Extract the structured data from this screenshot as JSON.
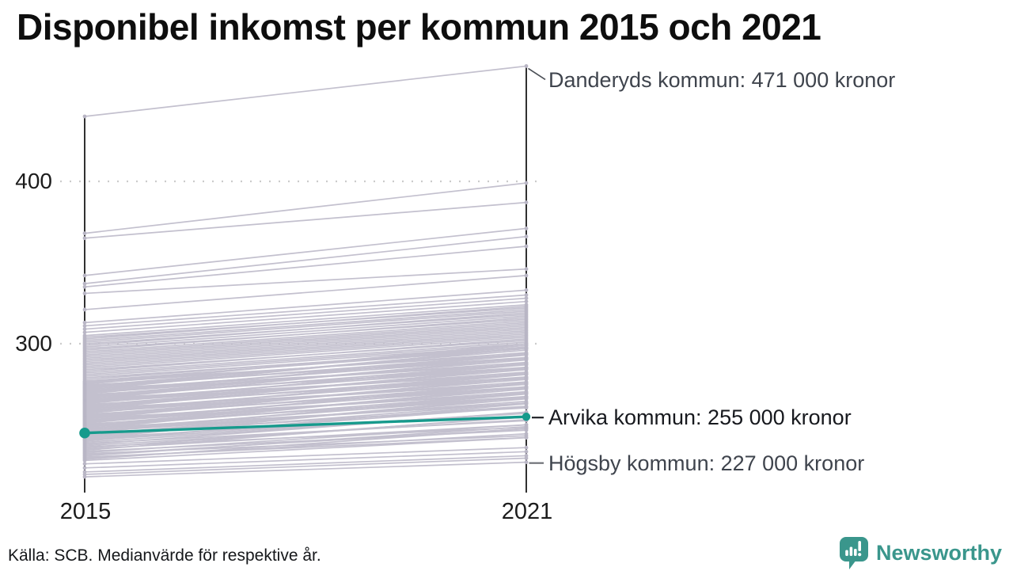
{
  "title": "Disponibel inkomst per kommun 2015 och 2021",
  "source_note": "Källa: SCB. Medianvärde för respektive år.",
  "branding": {
    "wordmark": "Newsworthy",
    "logo_icon": "speech-bubble-bar-chart",
    "color": "#3a968c"
  },
  "colors": {
    "line": "#c3c0ce",
    "dot": "#b9b6c5",
    "highlight": "#169a8c",
    "axis": "#1a1a1a",
    "grid": "#cbcbcb",
    "leader_muted": "#6b6e74",
    "leader_emphasis": "#17191e",
    "leader_diagonal": "#4a4e55"
  },
  "chart_data": {
    "type": "line",
    "subtype": "slopegraph",
    "title": "Disponibel inkomst per kommun 2015 och 2021",
    "x_categories": [
      "2015",
      "2021"
    ],
    "y_ticks": [
      {
        "label": "400",
        "value": 400
      },
      {
        "label": "300",
        "value": 300
      }
    ],
    "grid": "dotted-horizontal",
    "unit_hint": "tusental kronor",
    "highlight_series": {
      "name": "Arvika kommun",
      "values_2015_2021": [
        245,
        255
      ],
      "color": "#169a8c"
    },
    "annotations": [
      {
        "label": "Danderyds kommun: 471 000 kronor",
        "municipality": "Danderyds kommun",
        "year": "2021",
        "value": 471,
        "emphasis": false,
        "leader": "diagonal"
      },
      {
        "label": "Arvika kommun: 255 000 kronor",
        "municipality": "Arvika kommun",
        "year": "2021",
        "value": 255,
        "emphasis": true,
        "leader": "horizontal"
      },
      {
        "label": "Högsby kommun: 227 000 kronor",
        "municipality": "Högsby kommun",
        "year": "2021",
        "value": 227,
        "emphasis": false,
        "leader": "horizontal"
      }
    ],
    "background_series_estimated": [
      [
        440,
        471
      ],
      [
        368,
        399
      ],
      [
        365,
        387
      ],
      [
        342,
        371
      ],
      [
        337,
        366
      ],
      [
        335,
        360
      ],
      [
        331,
        346
      ],
      [
        321,
        342
      ],
      [
        313,
        333
      ],
      [
        311,
        330
      ],
      [
        309,
        328
      ],
      [
        307,
        326
      ],
      [
        305,
        324
      ],
      [
        304,
        322
      ],
      [
        303,
        323
      ],
      [
        302,
        321
      ],
      [
        301,
        320
      ],
      [
        300,
        318
      ],
      [
        299,
        319
      ],
      [
        298,
        317
      ],
      [
        297,
        315
      ],
      [
        296,
        316
      ],
      [
        295,
        314
      ],
      [
        294,
        313
      ],
      [
        293,
        312
      ],
      [
        292,
        311
      ],
      [
        291,
        310
      ],
      [
        290,
        309
      ],
      [
        289,
        308
      ],
      [
        288,
        307
      ],
      [
        287,
        306
      ],
      [
        286,
        305
      ],
      [
        285,
        304
      ],
      [
        284,
        302
      ],
      [
        283,
        303
      ],
      [
        282,
        301
      ],
      [
        281,
        300
      ],
      [
        280,
        299
      ],
      [
        279,
        297
      ],
      [
        278,
        298
      ],
      [
        277,
        297
      ],
      [
        276.5,
        293.5
      ],
      [
        276,
        299
      ],
      [
        275.5,
        294.5
      ],
      [
        275,
        300
      ],
      [
        274.5,
        290.5
      ],
      [
        274,
        296
      ],
      [
        273.5,
        291.5
      ],
      [
        273,
        297
      ],
      [
        272.5,
        293.5
      ],
      [
        272,
        287
      ],
      [
        271.5,
        297.5
      ],
      [
        271,
        291
      ],
      [
        270.5,
        287.5
      ],
      [
        270,
        293
      ],
      [
        269.5,
        288.5
      ],
      [
        269,
        294
      ],
      [
        268.5,
        284.5
      ],
      [
        268,
        290
      ],
      [
        267.5,
        285.5
      ],
      [
        267,
        291
      ],
      [
        266.5,
        287.5
      ],
      [
        266,
        281
      ],
      [
        265.5,
        291.5
      ],
      [
        265,
        285
      ],
      [
        264.5,
        281.5
      ],
      [
        264,
        287
      ],
      [
        263.5,
        282.5
      ],
      [
        263,
        288
      ],
      [
        262.5,
        278.5
      ],
      [
        262,
        284
      ],
      [
        261.5,
        279.5
      ],
      [
        261,
        285
      ],
      [
        260.5,
        281.5
      ],
      [
        260,
        275
      ],
      [
        259.5,
        285.5
      ],
      [
        259,
        279
      ],
      [
        258.5,
        275.5
      ],
      [
        258,
        281
      ],
      [
        257.5,
        276.5
      ],
      [
        257,
        282
      ],
      [
        256.5,
        272.5
      ],
      [
        256,
        278
      ],
      [
        255.5,
        273.5
      ],
      [
        255,
        279
      ],
      [
        254.5,
        275.5
      ],
      [
        254,
        269
      ],
      [
        253.5,
        279.5
      ],
      [
        253,
        273
      ],
      [
        252.5,
        269.5
      ],
      [
        252,
        275
      ],
      [
        251.5,
        270.5
      ],
      [
        251,
        276
      ],
      [
        250.5,
        266.5
      ],
      [
        250,
        272
      ],
      [
        249.5,
        267.5
      ],
      [
        249,
        273
      ],
      [
        248.5,
        269.5
      ],
      [
        248,
        263
      ],
      [
        247.5,
        273.5
      ],
      [
        247,
        267
      ],
      [
        246.5,
        263.5
      ],
      [
        246,
        269
      ],
      [
        245.5,
        264.5
      ],
      [
        245,
        270
      ],
      [
        244.5,
        260.5
      ],
      [
        244,
        266
      ],
      [
        243.5,
        261.5
      ],
      [
        243,
        267
      ],
      [
        242.5,
        263.5
      ],
      [
        242,
        257
      ],
      [
        241.5,
        267.5
      ],
      [
        241,
        261
      ],
      [
        240.5,
        257.5
      ],
      [
        240,
        263
      ],
      [
        239.3,
        257.3
      ],
      [
        238.6,
        252.6
      ],
      [
        237.9,
        257.9
      ],
      [
        237.2,
        253.2
      ],
      [
        236.5,
        248.5
      ],
      [
        235.8,
        254.8
      ],
      [
        235.1,
        250.1
      ],
      [
        234.4,
        255.4
      ],
      [
        233.7,
        246.7
      ],
      [
        233,
        250
      ],
      [
        232.3,
        243.3
      ],
      [
        231.6,
        247.6
      ],
      [
        230.9,
        248.9
      ],
      [
        230.2,
        242.2
      ],
      [
        229.5,
        244.5
      ],
      [
        228.8,
        247.8
      ],
      [
        228.1,
        242.1
      ],
      [
        226,
        236
      ],
      [
        223.5,
        233.5
      ],
      [
        221,
        231
      ],
      [
        219.5,
        229.5
      ],
      [
        218,
        227
      ]
    ]
  }
}
